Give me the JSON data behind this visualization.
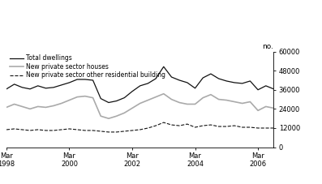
{
  "ylabel": "no.",
  "ylim": [
    0,
    60000
  ],
  "yticks": [
    0,
    12000,
    24000,
    36000,
    48000,
    60000
  ],
  "ytick_labels": [
    "0",
    "12000",
    "24000",
    "36000",
    "48000",
    "60000"
  ],
  "xtick_labels": [
    "Mar\n1998",
    "Mar\n2000",
    "Mar\n2002",
    "Mar\n2004",
    "Mar\n2006"
  ],
  "xtick_positions": [
    0,
    8,
    16,
    24,
    32
  ],
  "legend": [
    {
      "label": "Total dwellings",
      "color": "#111111",
      "ls": "solid",
      "lw": 0.9
    },
    {
      "label": "New private sector houses",
      "color": "#aaaaaa",
      "ls": "solid",
      "lw": 1.2
    },
    {
      "label": "New private sector other residential building",
      "color": "#111111",
      "ls": "dashed",
      "lw": 0.8
    }
  ],
  "total_dwellings": [
    36500,
    39500,
    37500,
    36500,
    38500,
    37000,
    37500,
    39000,
    40500,
    42500,
    42500,
    42000,
    30500,
    28000,
    29000,
    31000,
    35000,
    38500,
    40000,
    43000,
    50500,
    44000,
    42000,
    40500,
    37000,
    43500,
    46000,
    43000,
    41500,
    40500,
    40000,
    41500,
    36000,
    38500,
    36500
  ],
  "private_houses": [
    25000,
    27000,
    25500,
    24000,
    25500,
    25000,
    26000,
    27500,
    29500,
    31500,
    32000,
    31000,
    19500,
    18000,
    19500,
    21500,
    24500,
    27500,
    29500,
    31500,
    33500,
    30000,
    28000,
    27000,
    27000,
    31000,
    33000,
    30000,
    29500,
    28500,
    27500,
    28500,
    23000,
    25500,
    24500
  ],
  "other_residential": [
    11000,
    11500,
    11000,
    10500,
    11000,
    10500,
    10500,
    11000,
    11500,
    11000,
    10500,
    10500,
    10000,
    9500,
    9500,
    10000,
    10500,
    11000,
    12000,
    13500,
    15500,
    14000,
    13500,
    14500,
    12500,
    13500,
    14000,
    13000,
    13000,
    13500,
    12500,
    12500,
    12000,
    12000,
    12000
  ],
  "background_color": "#ffffff"
}
